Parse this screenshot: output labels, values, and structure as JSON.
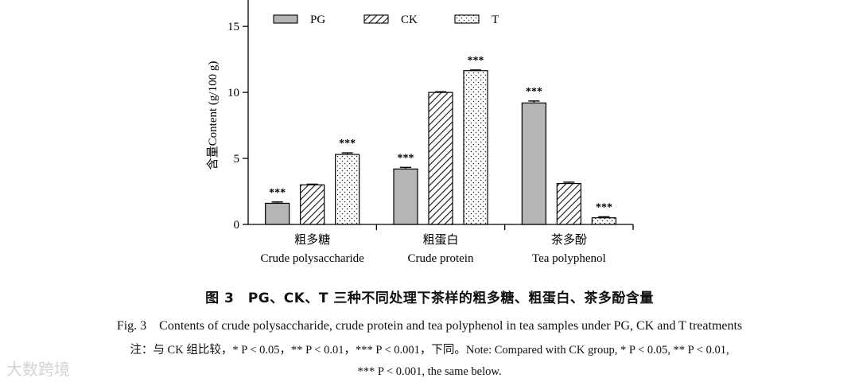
{
  "chart_data": {
    "type": "bar",
    "title": "",
    "ylabel": "含量Content (g/100 g)",
    "xlabel": "",
    "ylim": [
      0,
      17
    ],
    "yticks": [
      0,
      5,
      10,
      15
    ],
    "grid": false,
    "legend": "top",
    "categories": [
      {
        "cn": "粗多糖",
        "en": "Crude polysaccharide"
      },
      {
        "cn": "粗蛋白",
        "en": "Crude protein"
      },
      {
        "cn": "茶多酚",
        "en": "Tea polyphenol"
      }
    ],
    "series": [
      {
        "name": "PG",
        "pattern": "solid-gray",
        "values": [
          1.6,
          4.2,
          9.2
        ],
        "errors": [
          0.1,
          0.12,
          0.15
        ],
        "sig": [
          "***",
          "***",
          "***"
        ]
      },
      {
        "name": "CK",
        "pattern": "diagonal-hatch",
        "values": [
          3.0,
          10.0,
          3.1
        ],
        "errors": [
          0.05,
          0.05,
          0.1
        ],
        "sig": [
          "",
          "",
          ""
        ]
      },
      {
        "name": "T",
        "pattern": "dotted",
        "values": [
          5.3,
          11.65,
          0.5
        ],
        "errors": [
          0.12,
          0.05,
          0.08
        ],
        "sig": [
          "***",
          "***",
          "***"
        ]
      }
    ],
    "colors": {
      "PG": "#b5b5b5",
      "axis": "#000000"
    }
  },
  "caption": {
    "cn": "图 3　PG、CK、T 三种不同处理下茶样的粗多糖、粗蛋白、茶多酚含量",
    "en": "Fig. 3　Contents of crude polysaccharide, crude protein and tea polyphenol in tea samples under PG, CK and T treatments",
    "note_line1": "注：与 CK 组比较，* P < 0.05，** P < 0.01，*** P < 0.001，下同。Note: Compared with CK group, * P < 0.05, ** P < 0.01,",
    "note_line2": "*** P < 0.001, the same below."
  },
  "watermark": "大数跨境"
}
